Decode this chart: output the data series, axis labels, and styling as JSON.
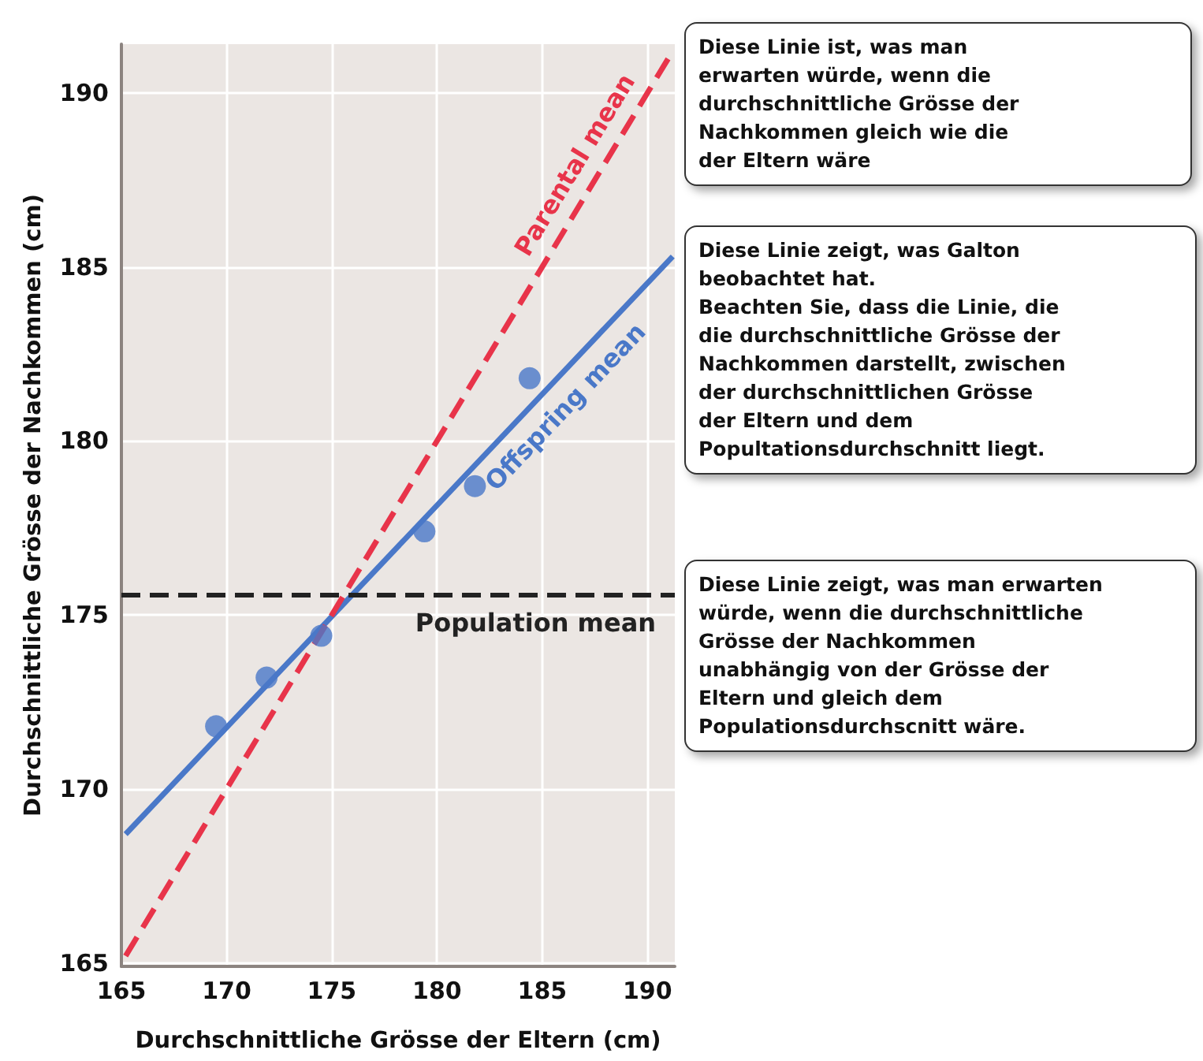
{
  "chart_data": {
    "type": "scatter",
    "xlabel": "Durchschnittliche Grösse der Eltern (cm)",
    "ylabel": "Durchschnittliche Grösse der Nachkommen (cm)",
    "xlim": [
      165,
      191.3
    ],
    "ylim": [
      164.9,
      191.4
    ],
    "xticks": [
      165,
      170,
      175,
      180,
      185,
      190
    ],
    "yticks": [
      165,
      170,
      175,
      180,
      185,
      190
    ],
    "grid": true,
    "legend": false,
    "series": [
      {
        "color": "#4a78c8",
        "marker": "circle",
        "x": [
          169.5,
          171.9,
          174.5,
          179.4,
          181.8,
          184.4
        ],
        "values": [
          171.8,
          173.2,
          174.4,
          177.4,
          178.7,
          181.8
        ]
      },
      {
        "type": "line",
        "name": "Offspring mean",
        "color": "#4a78c8",
        "marker": "none",
        "line_style": "solid",
        "x": [
          165.2,
          191.2
        ],
        "values": [
          168.7,
          185.3
        ]
      },
      {
        "type": "line",
        "name": "Parental mean",
        "color": "#e8344a",
        "marker": "none",
        "line_style": "dashed",
        "x": [
          165.2,
          191.2
        ],
        "values": [
          165.2,
          191.2
        ]
      }
    ],
    "ref_lines": [
      {
        "axis": "y",
        "value": 175.6,
        "label": "Population mean",
        "color": "#222222",
        "line_style": "dashed"
      }
    ],
    "annotations": [
      "Diese Linie ist, was man\nerwarten würde, wenn die\ndurchschnittliche Grösse der\nNachkommen gleich wie die\nder Eltern wäre",
      "Diese Linie zeigt, was Galton\nbeobachtet hat.\nBeachten Sie, dass die Linie, die\ndie durchschnittliche Grösse der\nNachkommen darstellt, zwischen\nder durchschnittlichen Grösse\nder Eltern und dem\nPopultationsdurchschnitt liegt.",
      "Diese Linie zeigt, was man erwarten\nwürde, wenn die durchschnittliche\nGrösse der Nachkommen\nunabhängig von der Grösse der\nEltern und gleich dem\nPopulationsdurchscnitt wäre."
    ]
  }
}
